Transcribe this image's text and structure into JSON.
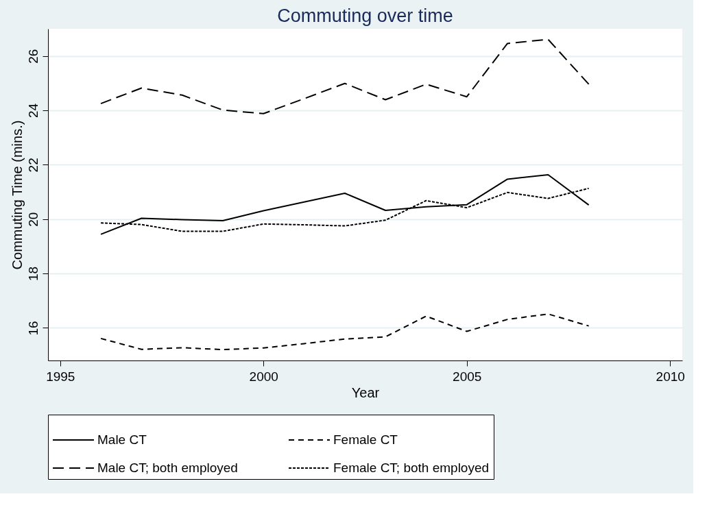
{
  "chart_data": {
    "type": "line",
    "title": "Commuting over time",
    "xlabel": "Year",
    "ylabel": "Commuting Time (mins.)",
    "x": [
      1996,
      1997,
      1998,
      1999,
      2000,
      2001,
      2002,
      2003,
      2004,
      2005,
      2006,
      2007,
      2008
    ],
    "series": [
      {
        "name": "Male CT",
        "color": "#000000",
        "line_style": "solid",
        "values": [
          19.44,
          20.03,
          19.98,
          19.94,
          20.31,
          20.63,
          20.95,
          20.32,
          20.45,
          20.53,
          21.47,
          21.63,
          20.52
        ]
      },
      {
        "name": "Female CT",
        "color": "#000000",
        "line_style": "dashed",
        "values": [
          15.61,
          15.21,
          15.27,
          15.2,
          15.26,
          15.42,
          15.59,
          15.67,
          16.43,
          15.87,
          16.31,
          16.51,
          16.07
        ]
      },
      {
        "name": "Male CT; both employed",
        "color": "#000000",
        "line_style": "dashed",
        "values": [
          24.25,
          24.82,
          24.56,
          24.01,
          23.88,
          24.43,
          24.99,
          24.39,
          24.96,
          24.5,
          26.46,
          26.61,
          24.96
        ]
      },
      {
        "name": "Female CT; both employed",
        "color": "#000000",
        "line_style": "dotted",
        "values": [
          19.86,
          19.8,
          19.55,
          19.55,
          19.82,
          19.79,
          19.75,
          19.96,
          20.68,
          20.42,
          20.98,
          20.76,
          21.13
        ]
      }
    ],
    "xlim": [
      1994.7,
      2010.3
    ],
    "xticks": [
      1995,
      2000,
      2005,
      2010
    ],
    "ylim": [
      14.8,
      27.0
    ],
    "yticks": [
      16,
      18,
      20,
      22,
      24,
      26
    ],
    "grid": "y",
    "legend": "bottom",
    "marker": "none"
  }
}
